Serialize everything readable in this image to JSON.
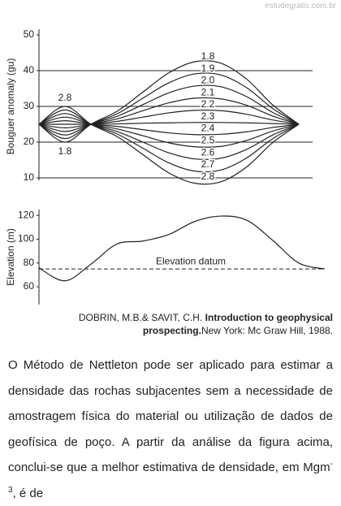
{
  "watermark": "estudegratis.com.br",
  "chart_data": [
    {
      "type": "line",
      "ylabel": "Bouguer anomaly (gu)",
      "categories": [
        null,
        null,
        null,
        null,
        null,
        null,
        null,
        null,
        null,
        null,
        null
      ],
      "ylim": [
        10,
        50
      ],
      "yticks": [
        10,
        20,
        30,
        40,
        50
      ],
      "grid": true,
      "series": [
        {
          "name": "1.8",
          "color": "#222",
          "values": [
            25,
            20,
            25,
            28.6,
            34,
            39.4,
            42.5,
            42.1,
            37.6,
            30.4,
            25
          ]
        },
        {
          "name": "1.9",
          "color": "#222",
          "values": [
            25,
            21,
            25,
            27.9,
            32.3,
            36.6,
            39.1,
            38.8,
            35.2,
            29.4,
            25
          ]
        },
        {
          "name": "2.0",
          "color": "#222",
          "values": [
            25,
            22,
            25,
            27.2,
            30.5,
            33.8,
            35.7,
            35.5,
            32.7,
            28.3,
            25
          ]
        },
        {
          "name": "2.1",
          "color": "#222",
          "values": [
            25,
            23,
            25,
            26.5,
            28.8,
            31,
            32.3,
            32.1,
            30.3,
            27.3,
            25
          ]
        },
        {
          "name": "2.2",
          "color": "#222",
          "values": [
            25,
            24,
            25,
            25.8,
            27,
            28.2,
            28.9,
            28.8,
            27.8,
            26.2,
            25
          ]
        },
        {
          "name": "2.3",
          "color": "#222",
          "values": [
            25,
            25,
            25,
            25.1,
            25.3,
            25.4,
            25.5,
            25.5,
            25.4,
            25.2,
            25
          ]
        },
        {
          "name": "2.4",
          "color": "#222",
          "values": [
            25,
            26,
            25,
            24.4,
            23.5,
            22.6,
            22.1,
            22.2,
            22.9,
            24.1,
            25
          ]
        },
        {
          "name": "2.5",
          "color": "#222",
          "values": [
            25,
            27,
            25,
            23.7,
            21.8,
            19.8,
            18.7,
            18.8,
            20.5,
            23.1,
            25
          ]
        },
        {
          "name": "2.6",
          "color": "#222",
          "values": [
            25,
            28,
            25,
            23,
            20,
            17,
            15.3,
            15.5,
            18,
            22,
            25
          ]
        },
        {
          "name": "2.7",
          "color": "#222",
          "values": [
            25,
            29,
            25,
            22.3,
            18.3,
            14.2,
            11.9,
            12.2,
            15.6,
            21,
            25
          ]
        },
        {
          "name": "2.8",
          "color": "#222",
          "values": [
            25,
            30,
            25,
            21.6,
            16.5,
            11.4,
            8.5,
            8.9,
            13.1,
            19.9,
            25
          ]
        }
      ]
    },
    {
      "type": "line",
      "ylabel": "Elevation (m)",
      "categories": [
        null,
        null,
        null,
        null,
        null,
        null,
        null,
        null,
        null,
        null,
        null,
        null
      ],
      "ylim": [
        45,
        125
      ],
      "yticks": [
        60,
        80,
        100,
        120
      ],
      "series": [
        {
          "color": "#222",
          "values": [
            76,
            65,
            79,
            96,
            98.5,
            104,
            115,
            119.5,
            116,
            99,
            80,
            75
          ]
        }
      ],
      "reference_line": {
        "value": 75,
        "label": "Elevation datum"
      }
    }
  ],
  "citation": {
    "authors": "DOBRIN, M.B.& SAVIT, C.H.",
    "title": "Introduction to geophysical prospecting.",
    "publisher": "New York: Mc Graw Hill, 1988."
  },
  "question": {
    "text": "O Método de Nettleton pode ser aplicado para estimar a densidade das rochas subjacentes sem a necessidade de amostragem física do material ou utilização de dados de geofísica de poço. A partir da análise da figura acima, conclui-se que a melhor estimativa de densidade, em Mgm",
    "superscript": "-3",
    "end": ", é de"
  }
}
